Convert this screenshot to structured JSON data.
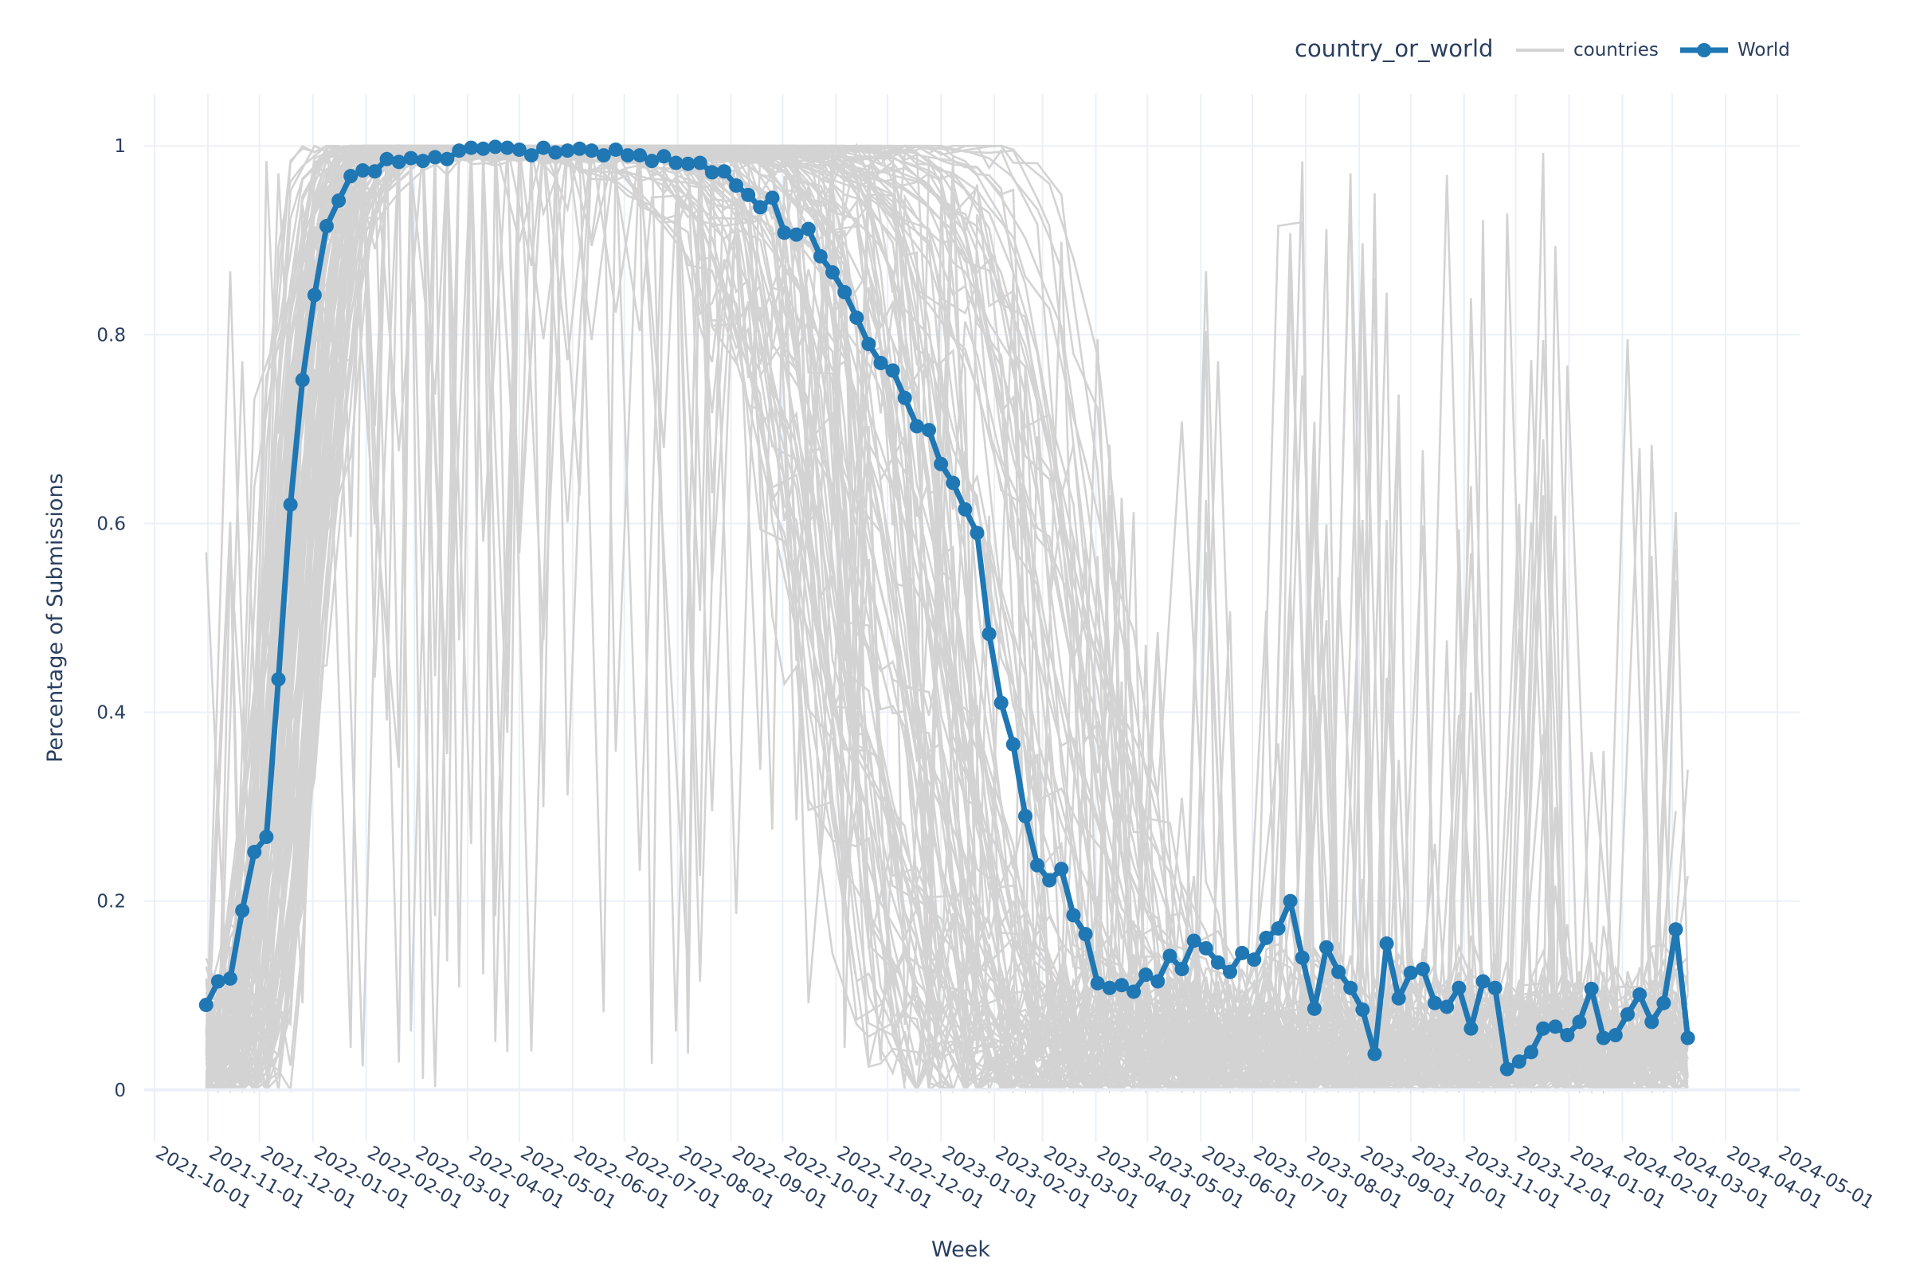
{
  "chart_data": {
    "type": "line",
    "xlabel": "Week",
    "ylabel": "Percentage of Submissions",
    "ylim": [
      -0.055,
      1.055
    ],
    "xlim": [
      "2021-09-25",
      "2024-05-14"
    ],
    "grid": true,
    "legend": {
      "title": "country_or_world",
      "placement": "top-right",
      "entries": [
        "countries",
        "World"
      ]
    },
    "x_ticks": [
      "2021-10-01",
      "2021-11-01",
      "2021-12-01",
      "2022-01-01",
      "2022-02-01",
      "2022-03-01",
      "2022-04-01",
      "2022-05-01",
      "2022-06-01",
      "2022-07-01",
      "2022-08-01",
      "2022-09-01",
      "2022-10-01",
      "2022-11-01",
      "2022-12-01",
      "2023-01-01",
      "2023-02-01",
      "2023-03-01",
      "2023-04-01",
      "2023-05-01",
      "2023-06-01",
      "2023-07-01",
      "2023-08-01",
      "2023-09-01",
      "2023-10-01",
      "2023-11-01",
      "2023-12-01",
      "2024-01-01",
      "2024-02-01",
      "2024-03-01",
      "2024-04-01",
      "2024-05-01"
    ],
    "y_ticks": [
      "0",
      "0.2",
      "0.4",
      "0.6",
      "0.8",
      "1"
    ],
    "y_tick_values": [
      0,
      0.2,
      0.4,
      0.6,
      0.8,
      1
    ],
    "series": [
      {
        "name": "World",
        "color": "#1f77b4",
        "x": [
          "2021-10-31",
          "2021-11-07",
          "2021-11-14",
          "2021-11-21",
          "2021-11-28",
          "2021-12-05",
          "2021-12-12",
          "2021-12-19",
          "2021-12-26",
          "2022-01-02",
          "2022-01-09",
          "2022-01-16",
          "2022-01-23",
          "2022-01-30",
          "2022-02-06",
          "2022-02-13",
          "2022-02-20",
          "2022-02-27",
          "2022-03-06",
          "2022-03-13",
          "2022-03-20",
          "2022-03-27",
          "2022-04-03",
          "2022-04-10",
          "2022-04-17",
          "2022-04-24",
          "2022-05-01",
          "2022-05-08",
          "2022-05-15",
          "2022-05-22",
          "2022-05-29",
          "2022-06-05",
          "2022-06-12",
          "2022-06-19",
          "2022-06-26",
          "2022-07-03",
          "2022-07-10",
          "2022-07-17",
          "2022-07-24",
          "2022-07-31",
          "2022-08-07",
          "2022-08-14",
          "2022-08-21",
          "2022-08-28",
          "2022-09-04",
          "2022-09-11",
          "2022-09-18",
          "2022-09-25",
          "2022-10-02",
          "2022-10-09",
          "2022-10-16",
          "2022-10-23",
          "2022-10-30",
          "2022-11-06",
          "2022-11-13",
          "2022-11-20",
          "2022-11-27",
          "2022-12-04",
          "2022-12-11",
          "2022-12-18",
          "2022-12-25",
          "2023-01-01",
          "2023-01-08",
          "2023-01-15",
          "2023-01-22",
          "2023-01-29",
          "2023-02-05",
          "2023-02-12",
          "2023-02-19",
          "2023-02-26",
          "2023-03-05",
          "2023-03-12",
          "2023-03-19",
          "2023-03-26",
          "2023-04-02",
          "2023-04-09",
          "2023-04-16",
          "2023-04-23",
          "2023-04-30",
          "2023-05-07",
          "2023-05-14",
          "2023-05-21",
          "2023-05-28",
          "2023-06-04",
          "2023-06-11",
          "2023-06-18",
          "2023-06-25",
          "2023-07-02",
          "2023-07-09",
          "2023-07-16",
          "2023-07-23",
          "2023-07-30",
          "2023-08-06",
          "2023-08-13",
          "2023-08-20",
          "2023-08-27",
          "2023-09-03",
          "2023-09-10",
          "2023-09-17",
          "2023-09-24",
          "2023-10-01",
          "2023-10-08",
          "2023-10-15",
          "2023-10-22",
          "2023-10-29",
          "2023-11-05",
          "2023-11-12",
          "2023-11-19",
          "2023-11-26",
          "2023-12-03",
          "2023-12-10",
          "2023-12-17",
          "2023-12-24",
          "2023-12-31",
          "2024-01-07",
          "2024-01-14",
          "2024-01-21",
          "2024-01-28",
          "2024-02-04",
          "2024-02-11",
          "2024-02-18",
          "2024-02-25",
          "2024-03-03",
          "2024-03-10"
        ],
        "values": [
          0.09,
          0.115,
          0.118,
          0.19,
          0.252,
          0.268,
          0.435,
          0.62,
          0.752,
          0.842,
          0.915,
          0.942,
          0.968,
          0.974,
          0.973,
          0.986,
          0.983,
          0.987,
          0.984,
          0.988,
          0.986,
          0.995,
          0.998,
          0.997,
          0.999,
          0.998,
          0.996,
          0.99,
          0.998,
          0.993,
          0.995,
          0.997,
          0.995,
          0.99,
          0.996,
          0.99,
          0.99,
          0.984,
          0.989,
          0.982,
          0.981,
          0.982,
          0.972,
          0.973,
          0.958,
          0.948,
          0.935,
          0.945,
          0.908,
          0.906,
          0.912,
          0.883,
          0.866,
          0.845,
          0.818,
          0.79,
          0.77,
          0.762,
          0.733,
          0.703,
          0.699,
          0.663,
          0.643,
          0.615,
          0.59,
          0.483,
          0.41,
          0.366,
          0.29,
          0.238,
          0.222,
          0.234,
          0.185,
          0.165,
          0.113,
          0.108,
          0.111,
          0.104,
          0.122,
          0.115,
          0.142,
          0.128,
          0.158,
          0.15,
          0.135,
          0.125,
          0.145,
          0.138,
          0.161,
          0.171,
          0.2,
          0.14,
          0.086,
          0.151,
          0.125,
          0.108,
          0.085,
          0.038,
          0.155,
          0.097,
          0.124,
          0.128,
          0.092,
          0.088,
          0.108,
          0.065,
          0.115,
          0.108,
          0.022,
          0.03,
          0.04,
          0.065,
          0.067,
          0.058,
          0.072,
          0.107,
          0.055,
          0.058,
          0.08,
          0.101,
          0.072,
          0.092,
          0.17,
          0.055
        ]
      },
      {
        "name": "countries",
        "color": "#d3d3d3"
      }
    ]
  }
}
